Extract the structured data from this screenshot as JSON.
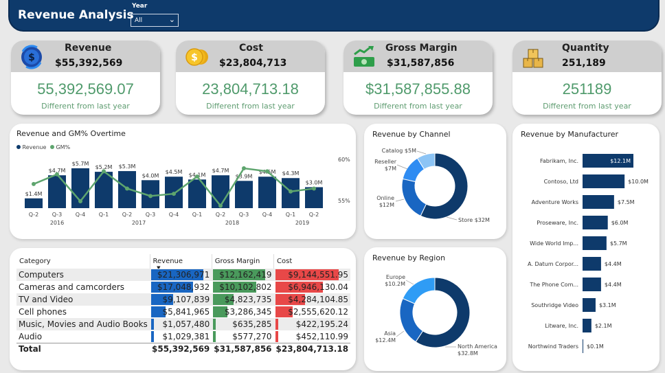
{
  "header": {
    "title": "Revenue Analysis",
    "year_label": "Year",
    "year_value": "All"
  },
  "kpis": [
    {
      "label": "Revenue",
      "value": "$55,392,569",
      "big": "55,392,569.07",
      "diff": "Different from last year",
      "icon": "revenue-icon"
    },
    {
      "label": "Cost",
      "value": "$23,804,713",
      "big": "23,804,713.18",
      "diff": "Different from last year",
      "icon": "coins-icon"
    },
    {
      "label": "Gross Margin",
      "value": "$31,587,856",
      "big": "$31,587,855.88",
      "diff": "Different from last year",
      "icon": "cash-growth-icon"
    },
    {
      "label": "Quantity",
      "value": "251,189",
      "big": "251189",
      "diff": "Different from last year",
      "icon": "boxes-icon"
    }
  ],
  "overtime": {
    "title": "Revenue and GM% Overtime",
    "legend": [
      "Revenue",
      "GM%"
    ],
    "colors": {
      "revenue": "#0e3a6b",
      "gm": "#5ea56e"
    },
    "y2_ticks": [
      "60%",
      "55%"
    ],
    "quarters": [
      "Q-2",
      "Q-3",
      "Q-4",
      "Q-1",
      "Q-2",
      "Q-3",
      "Q-4",
      "Q-1",
      "Q-2",
      "Q-3",
      "Q-4",
      "Q-1",
      "Q-2"
    ],
    "years": [
      {
        "label": "2016",
        "start": 0,
        "end": 2
      },
      {
        "label": "2017",
        "start": 3,
        "end": 6
      },
      {
        "label": "2018",
        "start": 7,
        "end": 10
      },
      {
        "label": "2019",
        "start": 11,
        "end": 12
      }
    ]
  },
  "chart_data": [
    {
      "type": "bar",
      "title": "Revenue and GM% Overtime",
      "categories": [
        "2016 Q-2",
        "2016 Q-3",
        "2016 Q-4",
        "2017 Q-1",
        "2017 Q-2",
        "2017 Q-3",
        "2017 Q-4",
        "2018 Q-1",
        "2018 Q-2",
        "2018 Q-3",
        "2018 Q-4",
        "2019 Q-1",
        "2019 Q-2"
      ],
      "series": [
        {
          "name": "Revenue",
          "values": [
            1.4,
            4.7,
            5.7,
            5.2,
            5.3,
            4.0,
            4.5,
            4.1,
            4.7,
            3.9,
            4.5,
            4.3,
            3.0
          ],
          "labels": [
            "$1.4M",
            "$4.7M",
            "$5.7M",
            "$5.2M",
            "$5.3M",
            "$4.0M",
            "$4.5M",
            "$4.1M",
            "$4.7M",
            "$3.9M",
            "$4.5M",
            "$4.3M",
            "$3.0M"
          ]
        },
        {
          "name": "GM%",
          "type": "line",
          "values": [
            57.6,
            58.9,
            55.3,
            59.3,
            57.0,
            56.0,
            56.3,
            58.6,
            54.7,
            59.7,
            59.3,
            56.6,
            57.0
          ]
        }
      ],
      "y2lim": [
        53,
        62
      ]
    },
    {
      "type": "pie",
      "title": "Revenue by Channel",
      "categories": [
        "Store",
        "Online",
        "Reseller",
        "Catalog"
      ],
      "values": [
        32,
        12,
        7,
        5
      ],
      "labels": [
        "Store $32M",
        "Online\n$12M",
        "Reseller\n$7M",
        "Catalog $5M"
      ],
      "colors": [
        "#0e3a6b",
        "#1966c2",
        "#2f8cf2",
        "#8cc4f5"
      ]
    },
    {
      "type": "pie",
      "title": "Revenue by Region",
      "categories": [
        "North America",
        "Asia",
        "Europe"
      ],
      "values": [
        32.8,
        12.4,
        10.2
      ],
      "labels": [
        "North America\n$32.8M",
        "Asia\n$12.4M",
        "Europe\n$10.2M"
      ],
      "colors": [
        "#0e3a6b",
        "#1966c2",
        "#2f9cf5"
      ]
    },
    {
      "type": "bar",
      "title": "Revenue by Manufacturer",
      "categories": [
        "Fabrikam, Inc.",
        "Contoso, Ltd",
        "Adventure Works",
        "Proseware, Inc.",
        "Wide World Imp...",
        "A. Datum Corpor...",
        "The Phone Com...",
        "Southridge Video",
        "Litware, Inc.",
        "Northwind Traders"
      ],
      "values": [
        12.1,
        10.0,
        7.5,
        6.0,
        5.7,
        4.4,
        4.4,
        3.1,
        2.1,
        0.1
      ],
      "labels": [
        "$12.1M",
        "$10.0M",
        "$7.5M",
        "$6.0M",
        "$5.7M",
        "$4.4M",
        "$4.4M",
        "$3.1M",
        "$2.1M",
        "$0.1M"
      ]
    }
  ],
  "channel": {
    "title": "Revenue by Channel"
  },
  "region": {
    "title": "Revenue by Region"
  },
  "manufacturer": {
    "title": "Revenue by Manufacturer",
    "color": "#0e3a6b"
  },
  "category_table": {
    "headers": [
      "Category",
      "Revenue",
      "Gross Margin",
      "Cost"
    ],
    "rows": [
      {
        "name": "Computers",
        "revenue": "$21,306,971",
        "gm": "$12,162,419",
        "cost": "$9,144,551.95",
        "rv": 21.31,
        "gv": 12.16,
        "cv": 9.14
      },
      {
        "name": "Cameras and camcorders",
        "revenue": "$17,048,932",
        "gm": "$10,102,802",
        "cost": "$6,946,130.04",
        "rv": 17.05,
        "gv": 10.1,
        "cv": 6.95
      },
      {
        "name": "TV and Video",
        "revenue": "$9,107,839",
        "gm": "$4,823,735",
        "cost": "$4,284,104.85",
        "rv": 9.11,
        "gv": 4.82,
        "cv": 4.28
      },
      {
        "name": "Cell phones",
        "revenue": "$5,841,965",
        "gm": "$3,286,345",
        "cost": "$2,555,620.12",
        "rv": 5.84,
        "gv": 3.29,
        "cv": 2.56
      },
      {
        "name": "Music, Movies and Audio Books",
        "revenue": "$1,057,480",
        "gm": "$635,285",
        "cost": "$422,195.24",
        "rv": 1.06,
        "gv": 0.64,
        "cv": 0.42
      },
      {
        "name": "Audio",
        "revenue": "$1,029,381",
        "gm": "$577,270",
        "cost": "$452,110.99",
        "rv": 1.03,
        "gv": 0.58,
        "cv": 0.45
      }
    ],
    "total": {
      "name": "Total",
      "revenue": "$55,392,569",
      "gm": "$31,587,856",
      "cost": "$23,804,713.18"
    },
    "colors": {
      "revenue": "#1966c2",
      "gm": "#4a9a5c",
      "cost": "#e84848"
    }
  }
}
